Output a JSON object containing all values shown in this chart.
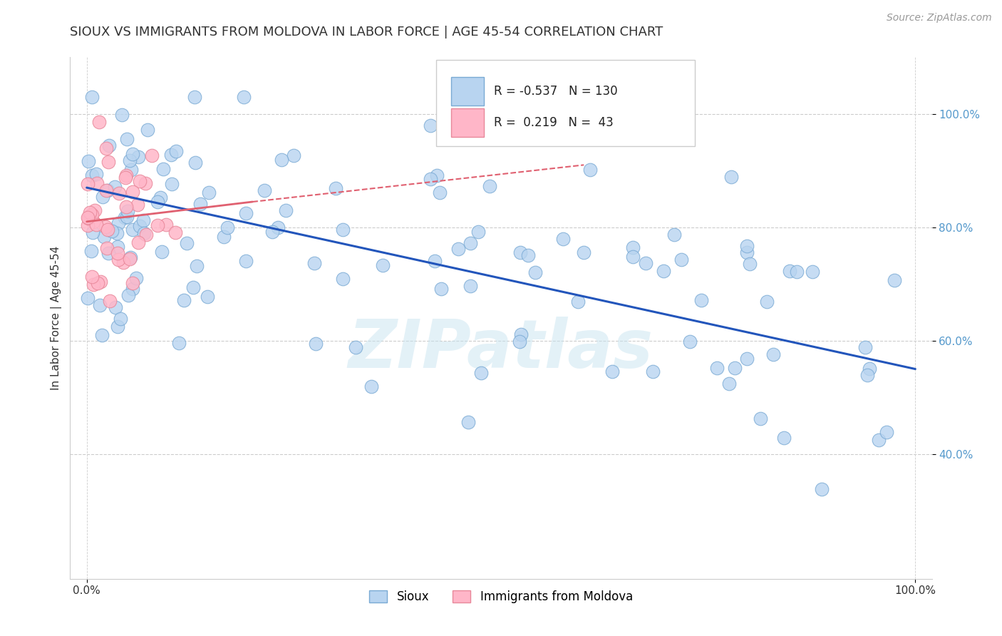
{
  "title": "SIOUX VS IMMIGRANTS FROM MOLDOVA IN LABOR FORCE | AGE 45-54 CORRELATION CHART",
  "source_text": "Source: ZipAtlas.com",
  "ylabel": "In Labor Force | Age 45-54",
  "xlim": [
    -0.02,
    1.02
  ],
  "ylim": [
    0.18,
    1.1
  ],
  "xtick_positions": [
    0.0,
    1.0
  ],
  "xtick_labels": [
    "0.0%",
    "100.0%"
  ],
  "ytick_positions": [
    0.4,
    0.6,
    0.8,
    1.0
  ],
  "ytick_labels": [
    "40.0%",
    "60.0%",
    "80.0%",
    "100.0%"
  ],
  "sioux_color": "#b8d4f0",
  "sioux_edge_color": "#7aaad4",
  "moldova_color": "#ffb6c8",
  "moldova_edge_color": "#e8889a",
  "trend_blue_color": "#2255bb",
  "trend_pink_color": "#e06070",
  "legend_r1": "-0.537",
  "legend_n1": "130",
  "legend_r2": "0.219",
  "legend_n2": "43",
  "watermark": "ZIPatlas",
  "background_color": "#ffffff",
  "grid_color": "#cccccc",
  "title_color": "#333333",
  "yaxis_tick_color": "#5599cc",
  "source_color": "#999999"
}
